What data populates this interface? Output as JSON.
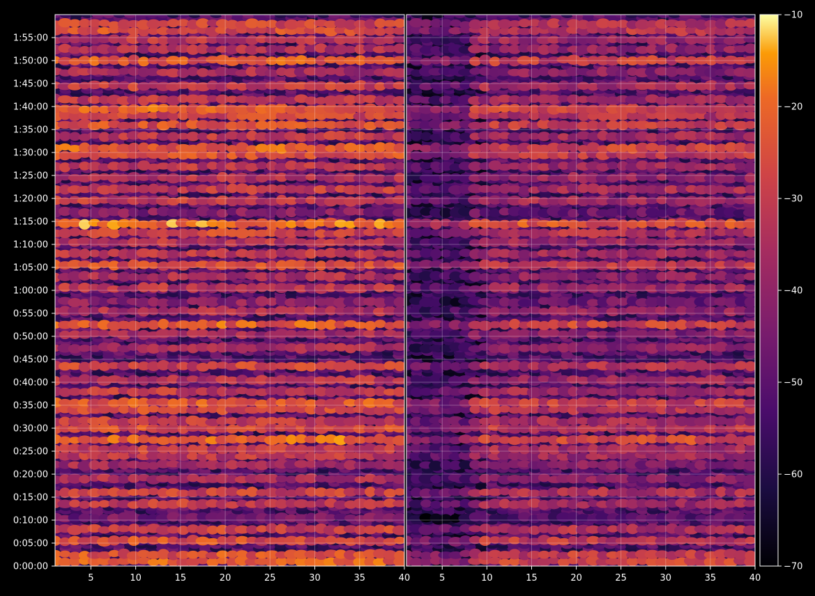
{
  "chart_data": {
    "type": "heatmap",
    "title": "",
    "xlabel": "",
    "ylabel": "",
    "background": "#000000",
    "colormap": "inferno",
    "panels": [
      {
        "name": "",
        "x_range": [
          1,
          40
        ],
        "x_ticks": [
          5,
          10,
          15,
          20,
          25,
          30,
          35,
          40
        ],
        "x_tick_labels": [
          "5",
          "10",
          "15",
          "20",
          "25",
          "30",
          "35",
          "40"
        ]
      },
      {
        "name": "",
        "x_range": [
          1,
          40
        ],
        "x_ticks": [
          5,
          10,
          15,
          20,
          25,
          30,
          35,
          40
        ],
        "x_tick_labels": [
          "5",
          "10",
          "15",
          "20",
          "25",
          "30",
          "35",
          "40"
        ]
      }
    ],
    "y_range_seconds": [
      0,
      7200
    ],
    "y_ticks": [
      "0:00:00",
      "0:05:00",
      "0:10:00",
      "0:15:00",
      "0:20:00",
      "0:25:00",
      "0:30:00",
      "0:35:00",
      "0:40:00",
      "0:45:00",
      "0:50:00",
      "0:55:00",
      "1:00:00",
      "1:05:00",
      "1:10:00",
      "1:15:00",
      "1:20:00",
      "1:25:00",
      "1:30:00",
      "1:35:00",
      "1:40:00",
      "1:45:00",
      "1:50:00",
      "1:55:00"
    ],
    "grid": true,
    "colorbar": {
      "range": [
        -70,
        -10
      ],
      "ticks": [
        -70,
        -60,
        -50,
        -40,
        -30,
        -20,
        -10
      ],
      "tick_labels": [
        "−70",
        "−60",
        "−50",
        "−40",
        "−30",
        "−20",
        "−10"
      ]
    },
    "hot_rows_minutes": [
      {
        "t": 1,
        "v": -22
      },
      {
        "t": 2.5,
        "v": -24
      },
      {
        "t": 5.5,
        "v": -25
      },
      {
        "t": 8,
        "v": -28
      },
      {
        "t": 10.5,
        "v": -45
      },
      {
        "t": 13.5,
        "v": -30
      },
      {
        "t": 16,
        "v": -28
      },
      {
        "t": 19,
        "v": -34
      },
      {
        "t": 22,
        "v": -36
      },
      {
        "t": 24,
        "v": -31
      },
      {
        "t": 25.5,
        "v": -29
      },
      {
        "t": 27.5,
        "v": -20
      },
      {
        "t": 30,
        "v": -25
      },
      {
        "t": 31.5,
        "v": -29
      },
      {
        "t": 34,
        "v": -26
      },
      {
        "t": 35.5,
        "v": -24
      },
      {
        "t": 38,
        "v": -30
      },
      {
        "t": 40.5,
        "v": -32
      },
      {
        "t": 43.5,
        "v": -28
      },
      {
        "t": 47.5,
        "v": -35
      },
      {
        "t": 50.5,
        "v": -36
      },
      {
        "t": 52.5,
        "v": -22
      },
      {
        "t": 55.5,
        "v": -34
      },
      {
        "t": 57.5,
        "v": -40
      },
      {
        "t": 60.5,
        "v": -32
      },
      {
        "t": 63,
        "v": -34
      },
      {
        "t": 65.5,
        "v": -25
      },
      {
        "t": 68,
        "v": -30
      },
      {
        "t": 70.5,
        "v": -32
      },
      {
        "t": 72.5,
        "v": -27
      },
      {
        "t": 74.5,
        "v": -18
      },
      {
        "t": 77,
        "v": -42
      },
      {
        "t": 79.5,
        "v": -30
      },
      {
        "t": 82,
        "v": -30
      },
      {
        "t": 84.5,
        "v": -33
      },
      {
        "t": 87,
        "v": -31
      },
      {
        "t": 89.5,
        "v": -24
      },
      {
        "t": 91,
        "v": -22
      },
      {
        "t": 93.5,
        "v": -31
      },
      {
        "t": 96,
        "v": -25
      },
      {
        "t": 98,
        "v": -27
      },
      {
        "t": 99.5,
        "v": -22
      },
      {
        "t": 101.5,
        "v": -31
      },
      {
        "t": 104.5,
        "v": -30
      },
      {
        "t": 107.5,
        "v": -35
      },
      {
        "t": 110,
        "v": -23
      },
      {
        "t": 112.5,
        "v": -34
      },
      {
        "t": 114.5,
        "v": -32
      },
      {
        "t": 116.5,
        "v": -25
      },
      {
        "t": 118,
        "v": -28
      }
    ]
  }
}
